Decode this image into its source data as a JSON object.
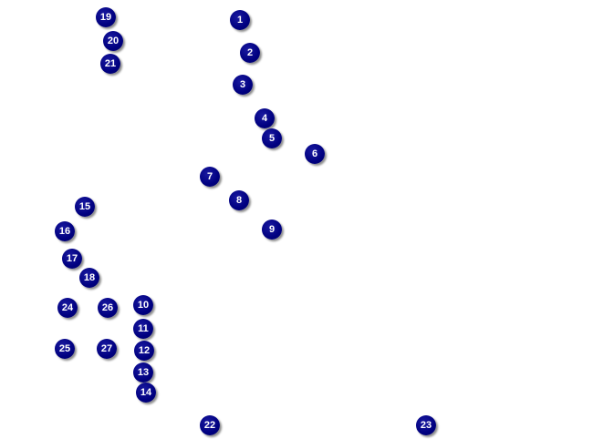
{
  "marker_color": "#000080",
  "marker_text_color": "#ffffff",
  "markers": [
    {
      "label": "1"
    },
    {
      "label": "2"
    },
    {
      "label": "3"
    },
    {
      "label": "4"
    },
    {
      "label": "5"
    },
    {
      "label": "6"
    },
    {
      "label": "7"
    },
    {
      "label": "8"
    },
    {
      "label": "9"
    },
    {
      "label": "10"
    },
    {
      "label": "11"
    },
    {
      "label": "12"
    },
    {
      "label": "13"
    },
    {
      "label": "14"
    },
    {
      "label": "15"
    },
    {
      "label": "16"
    },
    {
      "label": "17"
    },
    {
      "label": "18"
    },
    {
      "label": "19"
    },
    {
      "label": "20"
    },
    {
      "label": "21"
    },
    {
      "label": "22"
    },
    {
      "label": "23"
    },
    {
      "label": "24"
    },
    {
      "label": "25"
    },
    {
      "label": "26"
    },
    {
      "label": "27"
    }
  ]
}
